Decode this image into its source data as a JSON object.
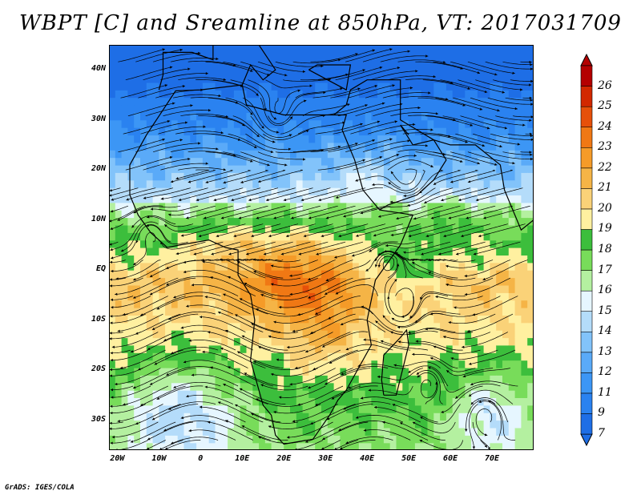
{
  "title": "WBPT [C] and Sreamline at 850hPa, VT: 2017031709",
  "footer": "GrADS: IGES/COLA",
  "map": {
    "variable": "WBPT [C]",
    "level": "850hPa",
    "valid_time": "2017031709",
    "lon_range": [
      -22,
      80
    ],
    "lat_range": [
      -36,
      45
    ],
    "lat_labels": [
      {
        "lat": 40,
        "text": "40N"
      },
      {
        "lat": 30,
        "text": "30N"
      },
      {
        "lat": 20,
        "text": "20N"
      },
      {
        "lat": 10,
        "text": "10N"
      },
      {
        "lat": 0,
        "text": "EQ"
      },
      {
        "lat": -10,
        "text": "10S"
      },
      {
        "lat": -20,
        "text": "20S"
      },
      {
        "lat": -30,
        "text": "30S"
      }
    ],
    "lon_labels": [
      {
        "lon": -20,
        "text": "20W"
      },
      {
        "lon": -10,
        "text": "10W"
      },
      {
        "lon": 0,
        "text": "0"
      },
      {
        "lon": 10,
        "text": "10E"
      },
      {
        "lon": 20,
        "text": "20E"
      },
      {
        "lon": 30,
        "text": "30E"
      },
      {
        "lon": 40,
        "text": "40E"
      },
      {
        "lon": 50,
        "text": "50E"
      },
      {
        "lon": 60,
        "text": "60E"
      },
      {
        "lon": 70,
        "text": "70E"
      }
    ]
  },
  "colorbar": {
    "levels": [
      "7",
      "9",
      "11",
      "12",
      "13",
      "14",
      "15",
      "16",
      "17",
      "18",
      "19",
      "20",
      "21",
      "22",
      "23",
      "24",
      "25",
      "26"
    ],
    "colors": [
      "#1e6ee6",
      "#2a82f0",
      "#3c96f5",
      "#5aaaf8",
      "#82c3fa",
      "#b4dcfa",
      "#e6f6ff",
      "#b4f0a0",
      "#78dc5a",
      "#3cbe3c",
      "#fff0a0",
      "#fad278",
      "#f5b446",
      "#f59b28",
      "#f07814",
      "#e6500a",
      "#d22800",
      "#b40000"
    ]
  }
}
